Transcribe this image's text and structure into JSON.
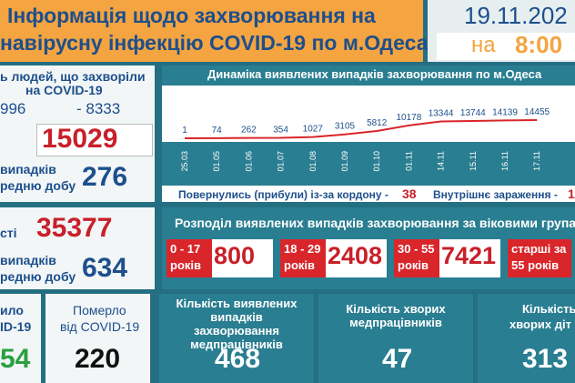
{
  "header": {
    "title_line1": "Інформація щодо захворювання на",
    "title_line2": "навірусну інфекцію COVID-19 по м.Одеса",
    "date": "19.11.202",
    "time_prefix": "на",
    "time": "8:00"
  },
  "cases": {
    "title_line1": "ь людей, що захворіли",
    "title_line2": "на COVID-19",
    "men": "996",
    "women": "- 8333",
    "total": 15029,
    "daily_label1": "випадків",
    "daily_label2": "редню добу",
    "daily": 276
  },
  "contacts": {
    "label": "сті",
    "total": 35377,
    "daily_label1": "випадків",
    "daily_label2": "редню добу",
    "daily": 634
  },
  "recovered": {
    "label1": "ило",
    "label2": "ID-19",
    "value": "54"
  },
  "deaths": {
    "label1": "Померло",
    "label2": "від COVID-19",
    "value": 220
  },
  "trend": {
    "title": "Динаміка виявлених випадків захворювання по м.Одеса",
    "categories": [
      "25.03",
      "01.05",
      "01.06",
      "01.07",
      "01.08",
      "01.09",
      "01.10",
      "01.11",
      "14.11",
      "15.11",
      "16.11",
      "17.11"
    ],
    "values": [
      1,
      74,
      262,
      354,
      1027,
      3105,
      5812,
      10178,
      13344,
      13744,
      14139,
      14455
    ],
    "color": "#d9262b"
  },
  "sources": {
    "abroad_label": "Повернулись (прибули) із-за кордону -",
    "abroad": 38,
    "local_label": "Внутрішнє зараження -",
    "local": "1"
  },
  "age": {
    "title": "Розподіл виявлених випадків захворювання за віковими групам",
    "groups": [
      {
        "label1": "0 - 17",
        "label2": "років",
        "value": 800
      },
      {
        "label1": "18 - 29",
        "label2": "років",
        "value": 2408
      },
      {
        "label1": "30 - 55",
        "label2": "років",
        "value": 7421
      },
      {
        "label1": "старші за",
        "label2": "55 років"
      }
    ]
  },
  "medics": {
    "label": "Кількість виявлених випадків захворювання медпрацівників",
    "value": 468
  },
  "sick_medics": {
    "label": "Кількість хворих медпрацівників",
    "value": 47
  },
  "children": {
    "label1": "Кількість",
    "label2": "хворих діт",
    "value": 313
  }
}
